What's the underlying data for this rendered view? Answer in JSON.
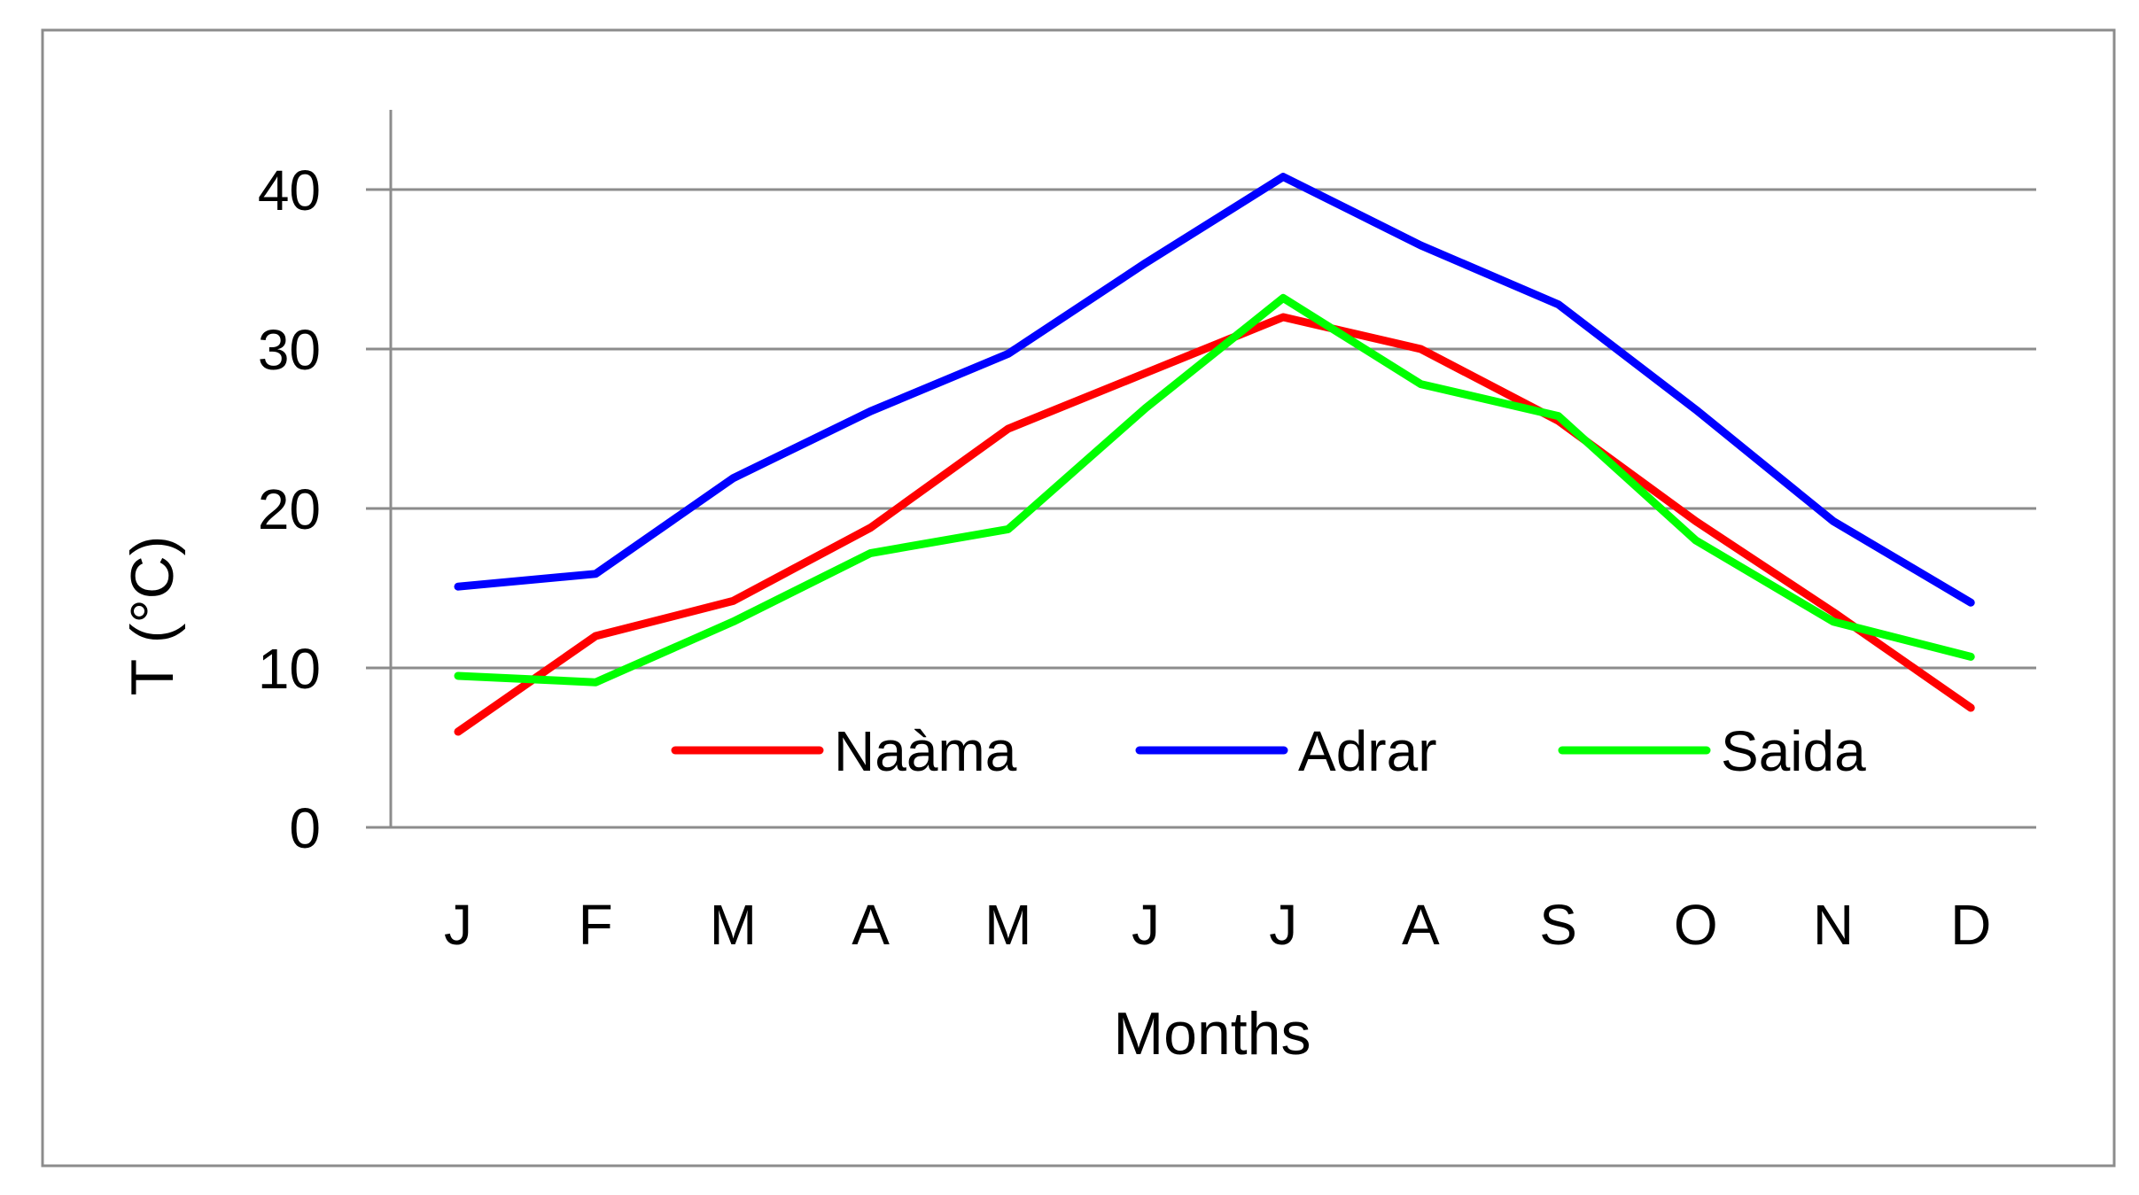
{
  "chart_data": {
    "type": "line",
    "categories": [
      "J",
      "F",
      "M",
      "A",
      "M",
      "J",
      "J",
      "A",
      "S",
      "O",
      "N",
      "D"
    ],
    "series": [
      {
        "name": "Naàma",
        "color": "#ff0000",
        "values": [
          6.0,
          12.0,
          14.2,
          18.8,
          25.0,
          28.5,
          32.0,
          30.0,
          25.5,
          19.2,
          13.5,
          7.5
        ]
      },
      {
        "name": "Adrar",
        "color": "#0000ff",
        "values": [
          15.1,
          15.9,
          21.9,
          26.1,
          29.7,
          35.4,
          40.8,
          36.5,
          32.8,
          26.2,
          19.2,
          14.1
        ]
      },
      {
        "name": "Saida",
        "color": "#00ff00",
        "values": [
          9.5,
          9.1,
          12.9,
          17.2,
          18.7,
          26.3,
          33.2,
          27.8,
          25.8,
          18.0,
          12.9,
          10.7
        ]
      }
    ],
    "ylim": [
      0,
      45
    ],
    "yticks": [
      0,
      10,
      20,
      30,
      40
    ],
    "xlabel": "Months",
    "ylabel": "T (°C)",
    "grid": true,
    "legend": "bottom-center, inside plot"
  }
}
